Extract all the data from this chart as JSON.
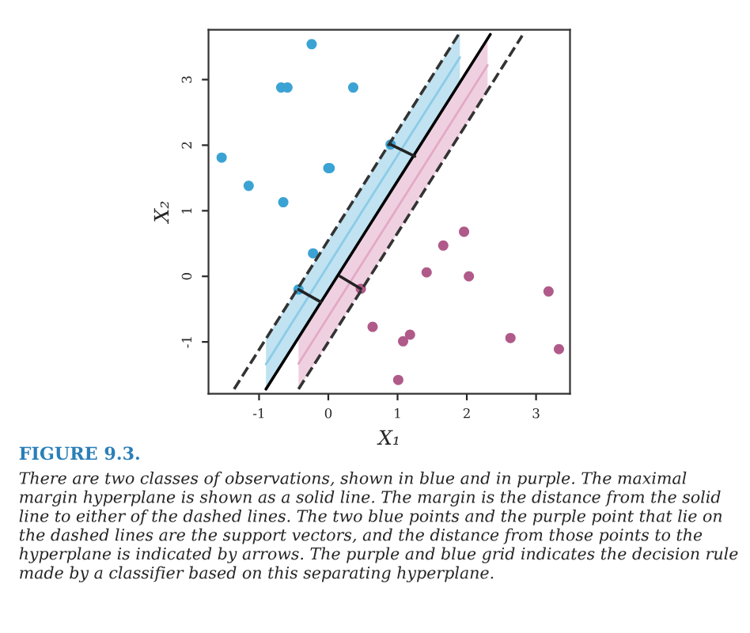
{
  "chart_data": {
    "type": "scatter",
    "xlabel": "X₁",
    "ylabel": "X₂",
    "xlim": [
      -1.73,
      3.49
    ],
    "ylim": [
      -1.79,
      3.76
    ],
    "xticks": [
      -1,
      0,
      1,
      2,
      3
    ],
    "yticks": [
      -1,
      0,
      1,
      2,
      3
    ],
    "grid": false,
    "series": [
      {
        "type": "line",
        "color": "#8ccbe6",
        "x": [
          -0.9,
          0.5,
          1.9
        ],
        "values": [
          -1.34,
          1.01,
          3.34
        ],
        "lower": [
          -1.72,
          0.62,
          2.95
        ],
        "upper": [
          -0.95,
          1.39,
          3.72
        ]
      },
      {
        "type": "line",
        "color": "#e2a9c6",
        "x": [
          -0.43,
          1.0,
          2.3
        ],
        "values": [
          -1.33,
          1.05,
          3.22
        ],
        "lower": [
          -1.72,
          0.66,
          2.83
        ],
        "upper": [
          -0.94,
          1.45,
          3.62
        ]
      },
      {
        "type": "line",
        "color": "#333333",
        "line_style": "dashed",
        "x": [
          -1.36,
          0.0,
          1.9
        ],
        "values": [
          -1.72,
          0.55,
          3.72
        ]
      },
      {
        "type": "line",
        "color": "#000000",
        "line_style": "solid",
        "x": [
          -0.9,
          0.5,
          2.34
        ],
        "values": [
          -1.72,
          0.62,
          3.69
        ]
      },
      {
        "type": "line",
        "color": "#333333",
        "line_style": "dashed",
        "x": [
          -0.43,
          1.0,
          2.8
        ],
        "values": [
          -1.72,
          0.66,
          3.67
        ]
      },
      {
        "type": "line",
        "color": "#222222",
        "line_style": "solid",
        "x": [
          0.9,
          1.25
        ],
        "values": [
          2.01,
          1.83
        ]
      },
      {
        "type": "line",
        "color": "#222222",
        "line_style": "solid",
        "x": [
          -0.43,
          -0.11
        ],
        "values": [
          -0.2,
          -0.39
        ]
      },
      {
        "type": "line",
        "color": "#222222",
        "line_style": "solid",
        "x": [
          0.47,
          0.17
        ],
        "values": [
          -0.19,
          0.0
        ]
      },
      {
        "color": "#3ba3d4",
        "marker": "circle",
        "x": [
          -0.24,
          -0.68,
          -0.59,
          0.36,
          -1.54,
          -1.15,
          -0.65,
          0.0,
          0.02,
          0.9,
          -0.22,
          -0.43
        ],
        "values": [
          3.54,
          2.88,
          2.88,
          2.88,
          1.81,
          1.38,
          1.13,
          1.65,
          1.65,
          2.01,
          0.35,
          -0.2
        ]
      },
      {
        "color": "#b05a8a",
        "marker": "circle",
        "x": [
          1.96,
          1.66,
          1.42,
          2.03,
          0.47,
          0.64,
          1.08,
          1.18,
          1.01,
          2.63,
          3.18,
          3.33
        ],
        "values": [
          0.68,
          0.47,
          0.06,
          0.0,
          -0.19,
          -0.77,
          -0.99,
          -0.89,
          -1.58,
          -0.94,
          -0.23,
          -1.11
        ]
      }
    ],
    "annotations": [
      "FIGURE 9.3.",
      "There are two classes of observations, shown in blue and in purple. The maximal margin hyperplane is shown as a solid line. The margin is the distance from the solid line to either of the dashed lines. The two blue points and the purple point that lie on the dashed lines are the support vectors, and the distance from those points to the hyperplane is indicated by arrows. The purple and blue grid indicates the decision rule made by a classifier based on this separating hyperplane."
    ]
  }
}
